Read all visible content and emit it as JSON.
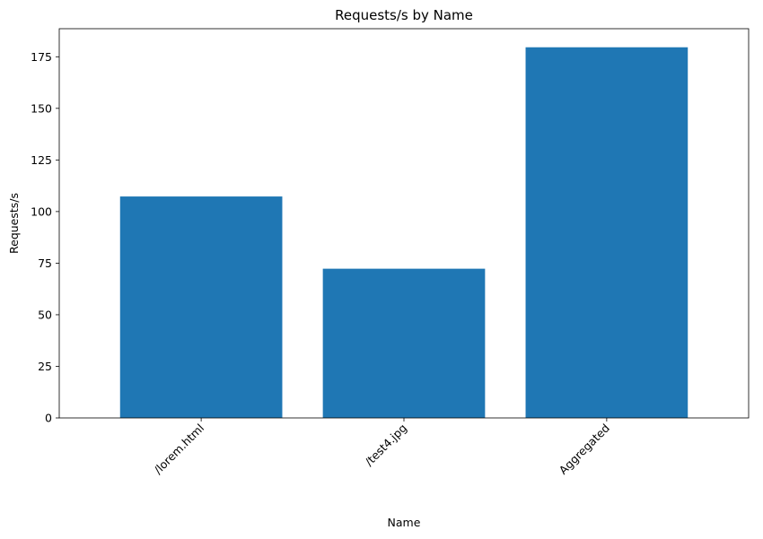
{
  "chart_data": {
    "type": "bar",
    "title": "Requests/s by Name",
    "xlabel": "Name",
    "ylabel": "Requests/s",
    "categories": [
      "/lorem.html",
      "/test4.jpg",
      "Aggregated"
    ],
    "values": [
      107.3,
      72.3,
      179.6
    ],
    "ylim": [
      0,
      188.6
    ],
    "yticks": [
      0,
      25,
      50,
      75,
      100,
      125,
      150,
      175
    ],
    "xtick_rotation": 45,
    "grid": false,
    "legend": "none",
    "bar_color": "#1f77b4"
  }
}
